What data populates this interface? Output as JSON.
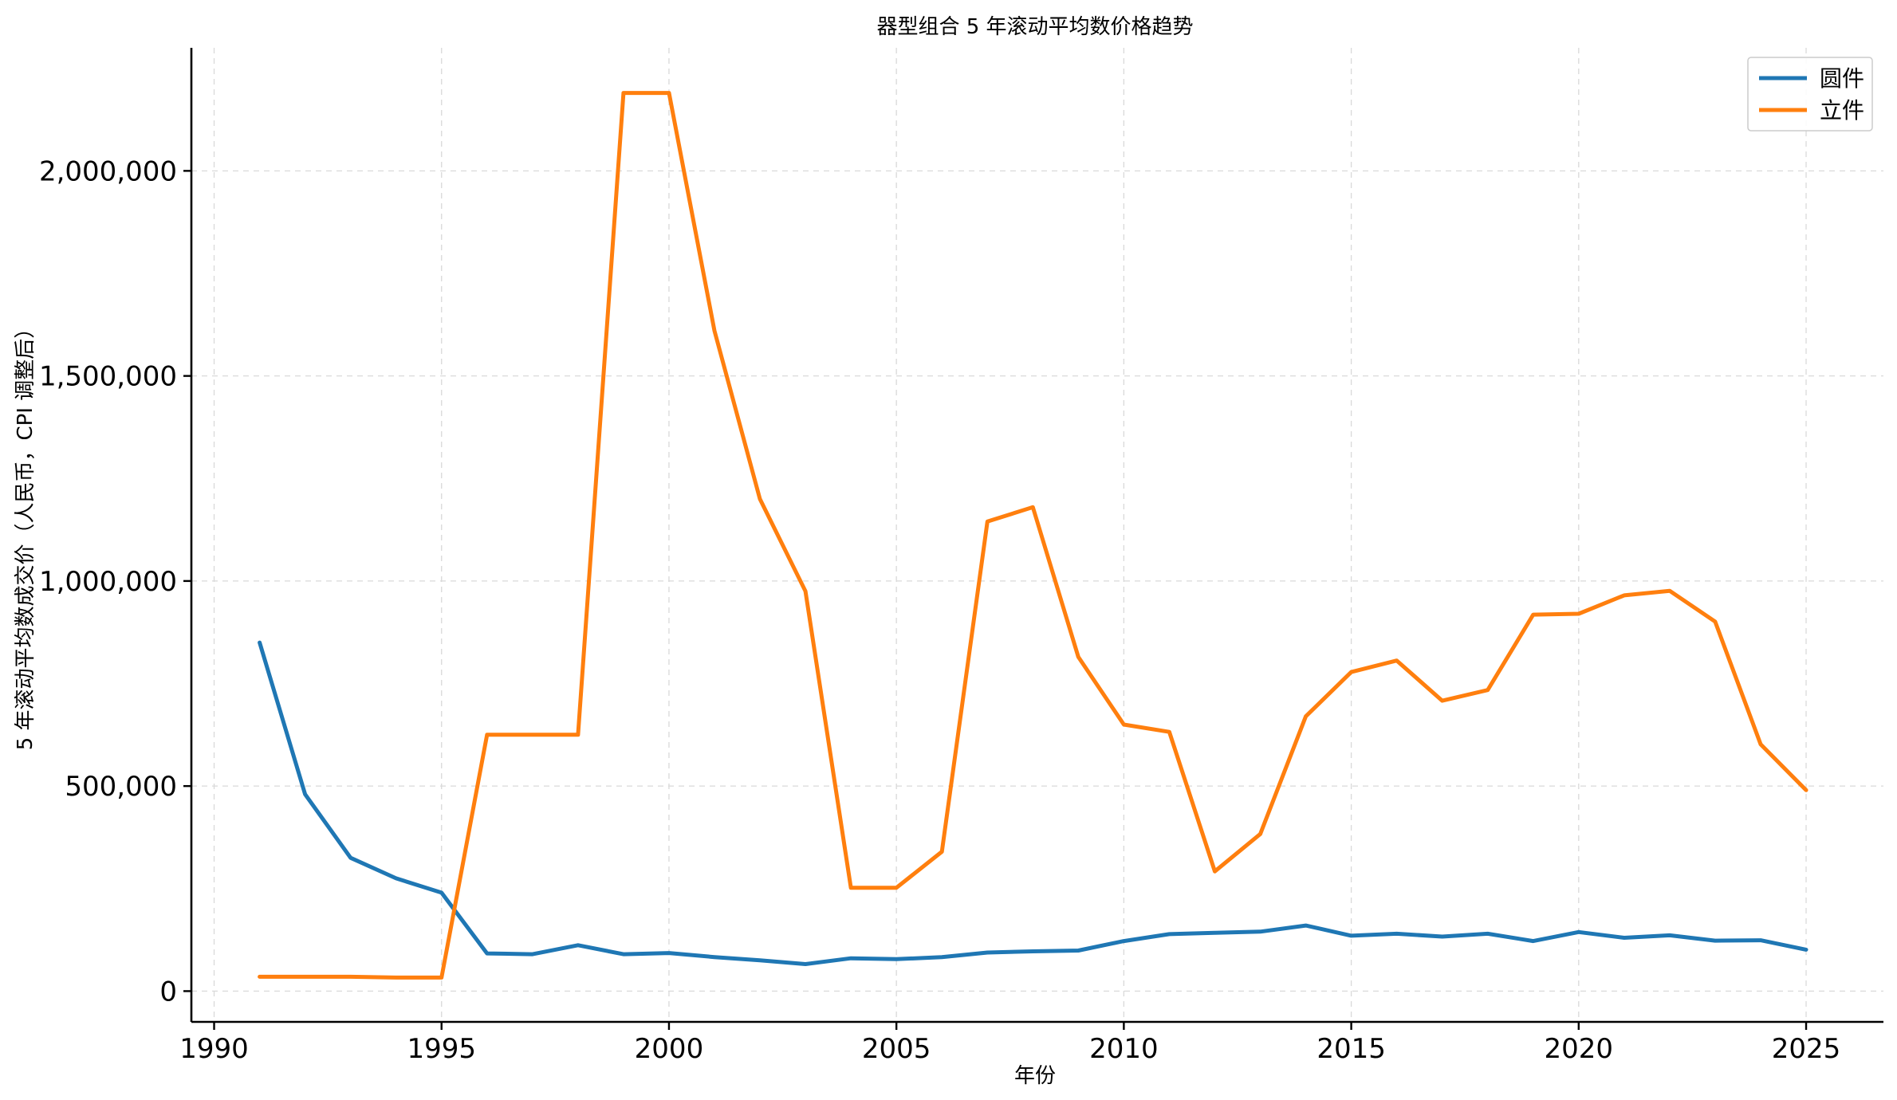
{
  "chart_data": {
    "type": "line",
    "title": "器型组合 5 年滚动平均数价格趋势",
    "xlabel": "年份",
    "ylabel": "5 年滚动平均数成交价（人民币，CPI 调整后）",
    "xlim": [
      1989.5,
      2026.7
    ],
    "ylim": [
      -75000,
      2300000
    ],
    "xticks": [
      1990,
      1995,
      2000,
      2005,
      2010,
      2015,
      2020,
      2025
    ],
    "yticks": [
      0,
      500000,
      1000000,
      1500000,
      2000000
    ],
    "ytick_labels": [
      "0",
      "500,000",
      "1,000,000",
      "1,500,000",
      "2,000,000"
    ],
    "grid": true,
    "legend_position": "top-right",
    "x": [
      1991,
      1992,
      1993,
      1994,
      1995,
      1996,
      1997,
      1998,
      1999,
      2000,
      2001,
      2002,
      2003,
      2004,
      2005,
      2006,
      2007,
      2008,
      2009,
      2010,
      2011,
      2012,
      2013,
      2014,
      2015,
      2016,
      2017,
      2018,
      2019,
      2020,
      2021,
      2022,
      2023,
      2024,
      2025
    ],
    "series": [
      {
        "name": "圆件",
        "color": "#1f77b4",
        "values": [
          850000,
          480000,
          325000,
          275000,
          240000,
          92000,
          90000,
          112000,
          90000,
          93000,
          83000,
          75000,
          66000,
          80000,
          78000,
          83000,
          94000,
          97000,
          99000,
          122000,
          139000,
          142000,
          145000,
          160000,
          135000,
          140000,
          133000,
          140000,
          122000,
          144000,
          130000,
          136000,
          123000,
          124000,
          101000
        ]
      },
      {
        "name": "立件",
        "color": "#ff7f0e",
        "values": [
          35000,
          35000,
          35000,
          33000,
          33000,
          625000,
          625000,
          625000,
          2190000,
          2190000,
          1610000,
          1200000,
          975000,
          252000,
          252000,
          340000,
          1145000,
          1180000,
          815000,
          650000,
          632000,
          292000,
          383000,
          670000,
          778000,
          806000,
          708000,
          734000,
          918000,
          920000,
          965000,
          976000,
          901000,
          602000,
          490000
        ]
      }
    ]
  }
}
